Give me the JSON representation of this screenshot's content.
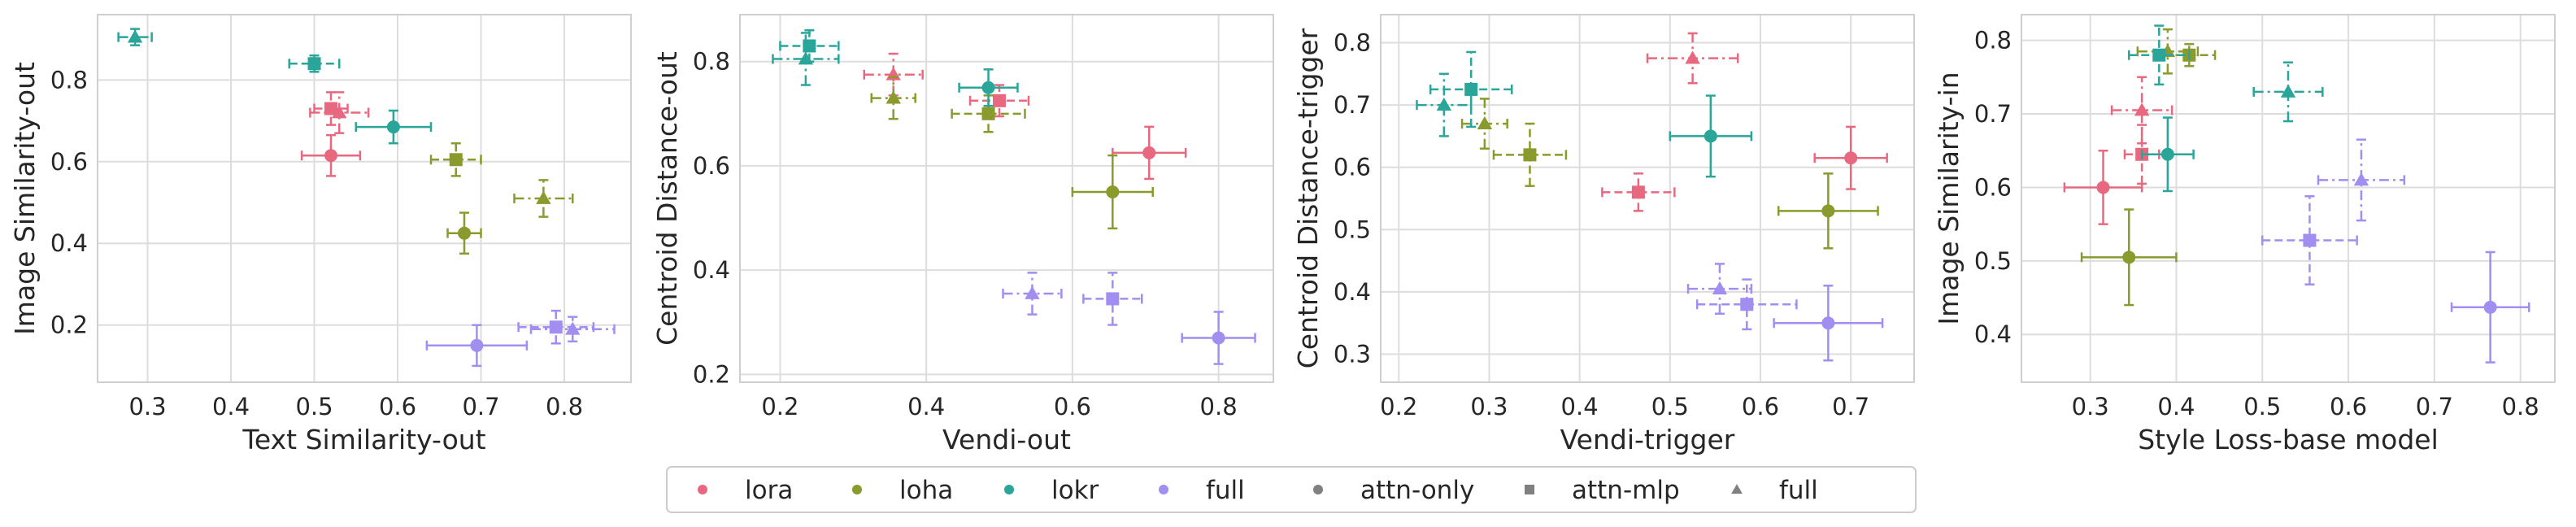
{
  "colors": {
    "lora": "#e8687f",
    "loha": "#8a9a2c",
    "lokr": "#2aa59a",
    "full": "#a28ef0",
    "marker_legend": "#808080"
  },
  "legend": {
    "placement": "bottom-center",
    "entries": [
      {
        "label": "lora",
        "kind": "color",
        "color_key": "lora"
      },
      {
        "label": "loha",
        "kind": "color",
        "color_key": "loha"
      },
      {
        "label": "lokr",
        "kind": "color",
        "color_key": "lokr"
      },
      {
        "label": "full",
        "kind": "color",
        "color_key": "full"
      },
      {
        "label": "attn-only",
        "kind": "marker",
        "marker": "circle"
      },
      {
        "label": "attn-mlp",
        "kind": "marker",
        "marker": "square"
      },
      {
        "label": "full",
        "kind": "marker",
        "marker": "triangle"
      }
    ]
  },
  "chart_data": [
    {
      "type": "scatter",
      "xlabel": "Text Similarity-out",
      "ylabel": "Image Similarity-out",
      "xlim": [
        0.24,
        0.88
      ],
      "ylim": [
        0.06,
        0.96
      ],
      "xticks": [
        0.3,
        0.4,
        0.5,
        0.6,
        0.7,
        0.8
      ],
      "yticks": [
        0.2,
        0.4,
        0.6,
        0.8
      ],
      "tick_decimals": 1,
      "grid": true,
      "points": [
        {
          "series": "lora",
          "marker": "circle",
          "x": 0.52,
          "y": 0.615,
          "xerr": 0.035,
          "yerr": 0.05
        },
        {
          "series": "lora",
          "marker": "square",
          "x": 0.52,
          "y": 0.73,
          "xerr": 0.02,
          "yerr": 0.04
        },
        {
          "series": "lora",
          "marker": "triangle",
          "x": 0.53,
          "y": 0.72,
          "xerr": 0.035,
          "yerr": 0.05
        },
        {
          "series": "loha",
          "marker": "circle",
          "x": 0.68,
          "y": 0.425,
          "xerr": 0.02,
          "yerr": 0.05
        },
        {
          "series": "loha",
          "marker": "square",
          "x": 0.67,
          "y": 0.605,
          "xerr": 0.03,
          "yerr": 0.04
        },
        {
          "series": "loha",
          "marker": "triangle",
          "x": 0.775,
          "y": 0.51,
          "xerr": 0.035,
          "yerr": 0.045
        },
        {
          "series": "lokr",
          "marker": "circle",
          "x": 0.595,
          "y": 0.685,
          "xerr": 0.045,
          "yerr": 0.04
        },
        {
          "series": "lokr",
          "marker": "square",
          "x": 0.5,
          "y": 0.84,
          "xerr": 0.03,
          "yerr": 0.02
        },
        {
          "series": "lokr",
          "marker": "triangle",
          "x": 0.285,
          "y": 0.905,
          "xerr": 0.02,
          "yerr": 0.02
        },
        {
          "series": "full",
          "marker": "circle",
          "x": 0.695,
          "y": 0.15,
          "xerr": 0.06,
          "yerr": 0.05
        },
        {
          "series": "full",
          "marker": "square",
          "x": 0.79,
          "y": 0.195,
          "xerr": 0.045,
          "yerr": 0.04
        },
        {
          "series": "full",
          "marker": "triangle",
          "x": 0.81,
          "y": 0.19,
          "xerr": 0.05,
          "yerr": 0.03
        }
      ]
    },
    {
      "type": "scatter",
      "xlabel": "Vendi-out",
      "ylabel": "Centroid Distance-out",
      "xlim": [
        0.145,
        0.875
      ],
      "ylim": [
        0.185,
        0.89
      ],
      "xticks": [
        0.2,
        0.4,
        0.6,
        0.8
      ],
      "yticks": [
        0.2,
        0.4,
        0.6,
        0.8
      ],
      "tick_decimals": 1,
      "grid": true,
      "points": [
        {
          "series": "lora",
          "marker": "circle",
          "x": 0.705,
          "y": 0.625,
          "xerr": 0.05,
          "yerr": 0.05
        },
        {
          "series": "lora",
          "marker": "square",
          "x": 0.5,
          "y": 0.725,
          "xerr": 0.04,
          "yerr": 0.03
        },
        {
          "series": "lora",
          "marker": "triangle",
          "x": 0.355,
          "y": 0.775,
          "xerr": 0.04,
          "yerr": 0.04
        },
        {
          "series": "loha",
          "marker": "circle",
          "x": 0.655,
          "y": 0.55,
          "xerr": 0.055,
          "yerr": 0.07
        },
        {
          "series": "loha",
          "marker": "square",
          "x": 0.485,
          "y": 0.7,
          "xerr": 0.05,
          "yerr": 0.035
        },
        {
          "series": "loha",
          "marker": "triangle",
          "x": 0.355,
          "y": 0.73,
          "xerr": 0.03,
          "yerr": 0.04
        },
        {
          "series": "lokr",
          "marker": "circle",
          "x": 0.485,
          "y": 0.75,
          "xerr": 0.04,
          "yerr": 0.035
        },
        {
          "series": "lokr",
          "marker": "square",
          "x": 0.24,
          "y": 0.83,
          "xerr": 0.04,
          "yerr": 0.03
        },
        {
          "series": "lokr",
          "marker": "triangle",
          "x": 0.235,
          "y": 0.805,
          "xerr": 0.045,
          "yerr": 0.05
        },
        {
          "series": "full",
          "marker": "circle",
          "x": 0.8,
          "y": 0.27,
          "xerr": 0.05,
          "yerr": 0.05
        },
        {
          "series": "full",
          "marker": "square",
          "x": 0.655,
          "y": 0.345,
          "xerr": 0.04,
          "yerr": 0.05
        },
        {
          "series": "full",
          "marker": "triangle",
          "x": 0.545,
          "y": 0.355,
          "xerr": 0.04,
          "yerr": 0.04
        }
      ]
    },
    {
      "type": "scatter",
      "xlabel": "Vendi-trigger",
      "ylabel": "Centroid Distance-trigger",
      "xlim": [
        0.18,
        0.77
      ],
      "ylim": [
        0.255,
        0.845
      ],
      "xticks": [
        0.2,
        0.3,
        0.4,
        0.5,
        0.6,
        0.7
      ],
      "yticks": [
        0.3,
        0.4,
        0.5,
        0.6,
        0.7,
        0.8
      ],
      "tick_decimals": 1,
      "grid": true,
      "points": [
        {
          "series": "lora",
          "marker": "circle",
          "x": 0.7,
          "y": 0.615,
          "xerr": 0.04,
          "yerr": 0.05
        },
        {
          "series": "lora",
          "marker": "square",
          "x": 0.465,
          "y": 0.56,
          "xerr": 0.04,
          "yerr": 0.03
        },
        {
          "series": "lora",
          "marker": "triangle",
          "x": 0.525,
          "y": 0.775,
          "xerr": 0.05,
          "yerr": 0.04
        },
        {
          "series": "loha",
          "marker": "circle",
          "x": 0.675,
          "y": 0.53,
          "xerr": 0.055,
          "yerr": 0.06
        },
        {
          "series": "loha",
          "marker": "square",
          "x": 0.345,
          "y": 0.62,
          "xerr": 0.04,
          "yerr": 0.05
        },
        {
          "series": "loha",
          "marker": "triangle",
          "x": 0.295,
          "y": 0.67,
          "xerr": 0.025,
          "yerr": 0.04
        },
        {
          "series": "lokr",
          "marker": "circle",
          "x": 0.545,
          "y": 0.65,
          "xerr": 0.045,
          "yerr": 0.065
        },
        {
          "series": "lokr",
          "marker": "square",
          "x": 0.28,
          "y": 0.725,
          "xerr": 0.045,
          "yerr": 0.06
        },
        {
          "series": "lokr",
          "marker": "triangle",
          "x": 0.25,
          "y": 0.7,
          "xerr": 0.03,
          "yerr": 0.05
        },
        {
          "series": "full",
          "marker": "circle",
          "x": 0.675,
          "y": 0.35,
          "xerr": 0.06,
          "yerr": 0.06
        },
        {
          "series": "full",
          "marker": "square",
          "x": 0.585,
          "y": 0.38,
          "xerr": 0.055,
          "yerr": 0.04
        },
        {
          "series": "full",
          "marker": "triangle",
          "x": 0.555,
          "y": 0.405,
          "xerr": 0.035,
          "yerr": 0.04
        }
      ]
    },
    {
      "type": "scatter",
      "xlabel": "Style Loss-base model",
      "ylabel": "Image Similarity-in",
      "xlim": [
        0.22,
        0.84
      ],
      "ylim": [
        0.335,
        0.835
      ],
      "xticks": [
        0.3,
        0.4,
        0.5,
        0.6,
        0.7,
        0.8
      ],
      "yticks": [
        0.4,
        0.5,
        0.6,
        0.7,
        0.8
      ],
      "tick_decimals": 1,
      "grid": true,
      "points": [
        {
          "series": "lora",
          "marker": "circle",
          "x": 0.315,
          "y": 0.6,
          "xerr": 0.045,
          "yerr": 0.05
        },
        {
          "series": "lora",
          "marker": "square",
          "x": 0.36,
          "y": 0.645,
          "xerr": 0.02,
          "yerr": 0.04
        },
        {
          "series": "lora",
          "marker": "triangle",
          "x": 0.36,
          "y": 0.705,
          "xerr": 0.035,
          "yerr": 0.045
        },
        {
          "series": "loha",
          "marker": "circle",
          "x": 0.345,
          "y": 0.505,
          "xerr": 0.055,
          "yerr": 0.065
        },
        {
          "series": "loha",
          "marker": "square",
          "x": 0.415,
          "y": 0.78,
          "xerr": 0.03,
          "yerr": 0.015
        },
        {
          "series": "loha",
          "marker": "triangle",
          "x": 0.39,
          "y": 0.785,
          "xerr": 0.035,
          "yerr": 0.03
        },
        {
          "series": "lokr",
          "marker": "circle",
          "x": 0.39,
          "y": 0.645,
          "xerr": 0.03,
          "yerr": 0.05
        },
        {
          "series": "lokr",
          "marker": "square",
          "x": 0.38,
          "y": 0.78,
          "xerr": 0.035,
          "yerr": 0.04
        },
        {
          "series": "lokr",
          "marker": "triangle",
          "x": 0.53,
          "y": 0.73,
          "xerr": 0.04,
          "yerr": 0.04
        },
        {
          "series": "full",
          "marker": "circle",
          "x": 0.765,
          "y": 0.437,
          "xerr": 0.045,
          "yerr": 0.075
        },
        {
          "series": "full",
          "marker": "square",
          "x": 0.555,
          "y": 0.528,
          "xerr": 0.055,
          "yerr": 0.06
        },
        {
          "series": "full",
          "marker": "triangle",
          "x": 0.615,
          "y": 0.61,
          "xerr": 0.05,
          "yerr": 0.055
        }
      ]
    }
  ]
}
